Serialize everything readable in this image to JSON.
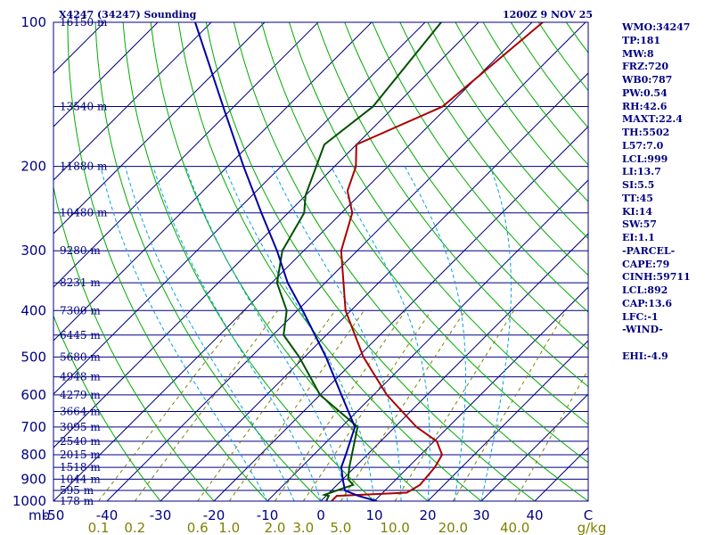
{
  "header": {
    "station_title": "X4247 (34247) Sounding",
    "valid_time": "1200Z  9 NOV 25"
  },
  "indices": [
    "WMO:34247",
    "TP:181",
    "MW:8",
    "FRZ:720",
    "WB0:787",
    "PW:0.54",
    "RH:42.6",
    "MAXT:22.4",
    "TH:5502",
    "L57:7.0",
    "LCL:999",
    "LI:13.7",
    "SI:5.5",
    "TT:45",
    "KI:14",
    "SW:57",
    "EI:1.1",
    "-PARCEL-",
    "CAPE:79",
    "CINH:59711",
    "LCL:892",
    "CAP:13.6",
    "LFC:-1",
    "-WIND-",
    "",
    "EHI:-4.9"
  ],
  "colors": {
    "frame": "#000080",
    "isobar": "#000080",
    "isotherm": "#000080",
    "dry_adiabat": "#00aa00",
    "moist_adiabat": "#00a0e0",
    "mixing_ratio": "#808000",
    "temperature": "#aa0000",
    "dewpoint": "#005000",
    "parcel": "#0000a0",
    "index_text": "#000080",
    "background": "#ffffff"
  },
  "chart_data": {
    "type": "line",
    "title": "X4247 (34247) Sounding",
    "subtitle": "1200Z  9 NOV 25",
    "xlabel": "C",
    "ylabel": "mb",
    "x_axis_unit": "C",
    "y_axis_unit": "mb",
    "mixing_ratio_unit": "g/kg",
    "xlim": [
      -50,
      50
    ],
    "ylim": [
      1000,
      100
    ],
    "pressure_ticks": [
      100,
      200,
      300,
      400,
      500,
      600,
      700,
      800,
      900,
      1000
    ],
    "temperature_ticks": [
      -50,
      -40,
      -30,
      -20,
      -10,
      0,
      10,
      20,
      30,
      40,
      50
    ],
    "temperature_tick_labels": [
      "-50",
      "-40",
      "-30",
      "-20",
      "-10",
      "0",
      "10",
      "20",
      "30",
      "40",
      "C"
    ],
    "mixing_ratio_lines": [
      0.1,
      0.2,
      0.6,
      1.0,
      2.0,
      3.0,
      5.0,
      10.0,
      20.0,
      40.0
    ],
    "mixing_ratio_labels": [
      {
        "value": 0.1,
        "label": "0.1"
      },
      {
        "value": 0.2,
        "label": "0.2"
      },
      {
        "value": 0.6,
        "label": "0.6"
      },
      {
        "value": 1.0,
        "label": "1.0"
      },
      {
        "value": 2.0,
        "label": "2.0"
      },
      {
        "value": 3.0,
        "label": "3.0"
      },
      {
        "value": 5.0,
        "label": "5.0"
      },
      {
        "value": 10.0,
        "label": "10.0"
      },
      {
        "value": 20.0,
        "label": "20.0"
      },
      {
        "value": 40.0,
        "label": "40.0"
      }
    ],
    "height_levels": [
      {
        "p": 100,
        "label": "16150 m"
      },
      {
        "p": 150,
        "label": "13540 m"
      },
      {
        "p": 200,
        "label": "11880 m"
      },
      {
        "p": 250,
        "label": "10480 m"
      },
      {
        "p": 300,
        "label": "9280 m"
      },
      {
        "p": 350,
        "label": "8231 m"
      },
      {
        "p": 400,
        "label": "7300 m"
      },
      {
        "p": 450,
        "label": "6445 m"
      },
      {
        "p": 500,
        "label": "5680 m"
      },
      {
        "p": 550,
        "label": "4948 m"
      },
      {
        "p": 600,
        "label": "4279 m"
      },
      {
        "p": 650,
        "label": "3664 m"
      },
      {
        "p": 700,
        "label": "3095 m"
      },
      {
        "p": 750,
        "label": "2540 m"
      },
      {
        "p": 800,
        "label": "2015 m"
      },
      {
        "p": 850,
        "label": "1518 m"
      },
      {
        "p": 900,
        "label": "1044 m"
      },
      {
        "p": 950,
        "label": "595 m"
      },
      {
        "p": 1000,
        "label": "178 m"
      }
    ],
    "series": [
      {
        "name": "Temperature",
        "points": [
          {
            "p": 1000,
            "t": 2.0
          },
          {
            "p": 975,
            "t": 2.0
          },
          {
            "p": 960,
            "t": 14.5
          },
          {
            "p": 925,
            "t": 15.5
          },
          {
            "p": 850,
            "t": 15.0
          },
          {
            "p": 800,
            "t": 14.0
          },
          {
            "p": 750,
            "t": 10.5
          },
          {
            "p": 700,
            "t": 4.0
          },
          {
            "p": 600,
            "t": -7.5
          },
          {
            "p": 500,
            "t": -19.0
          },
          {
            "p": 400,
            "t": -31.0
          },
          {
            "p": 300,
            "t": -43.0
          },
          {
            "p": 250,
            "t": -48.0
          },
          {
            "p": 225,
            "t": -53.0
          },
          {
            "p": 200,
            "t": -56.0
          },
          {
            "p": 180,
            "t": -60.0
          },
          {
            "p": 150,
            "t": -51.0
          },
          {
            "p": 100,
            "t": -48.0
          }
        ]
      },
      {
        "name": "Dewpoint",
        "points": [
          {
            "p": 1000,
            "t": 1.0
          },
          {
            "p": 975,
            "t": 0.5
          },
          {
            "p": 970,
            "t": -0.5
          },
          {
            "p": 950,
            "t": 1.0
          },
          {
            "p": 925,
            "t": 3.0
          },
          {
            "p": 900,
            "t": 1.0
          },
          {
            "p": 850,
            "t": -1.0
          },
          {
            "p": 700,
            "t": -7.0
          },
          {
            "p": 600,
            "t": -20.0
          },
          {
            "p": 500,
            "t": -31.0
          },
          {
            "p": 450,
            "t": -38.0
          },
          {
            "p": 400,
            "t": -42.0
          },
          {
            "p": 350,
            "t": -49.0
          },
          {
            "p": 300,
            "t": -54.0
          },
          {
            "p": 250,
            "t": -57.0
          },
          {
            "p": 230,
            "t": -60.0
          },
          {
            "p": 180,
            "t": -66.0
          },
          {
            "p": 150,
            "t": -64.0
          },
          {
            "p": 100,
            "t": -67.0
          }
        ]
      },
      {
        "name": "Parcel",
        "points": [
          {
            "p": 1000,
            "t": 10.5
          },
          {
            "p": 975,
            "t": 6.0
          },
          {
            "p": 950,
            "t": 2.5
          },
          {
            "p": 900,
            "t": 0.0
          },
          {
            "p": 850,
            "t": -2.5
          },
          {
            "p": 800,
            "t": -4.0
          },
          {
            "p": 700,
            "t": -7.5
          },
          {
            "p": 600,
            "t": -16.0
          },
          {
            "p": 500,
            "t": -26.0
          },
          {
            "p": 400,
            "t": -39.0
          },
          {
            "p": 350,
            "t": -47.0
          },
          {
            "p": 300,
            "t": -55.0
          },
          {
            "p": 250,
            "t": -65.0
          },
          {
            "p": 200,
            "t": -77.0
          },
          {
            "p": 150,
            "t": -92.0
          },
          {
            "p": 100,
            "t": -113.0
          }
        ]
      }
    ]
  }
}
